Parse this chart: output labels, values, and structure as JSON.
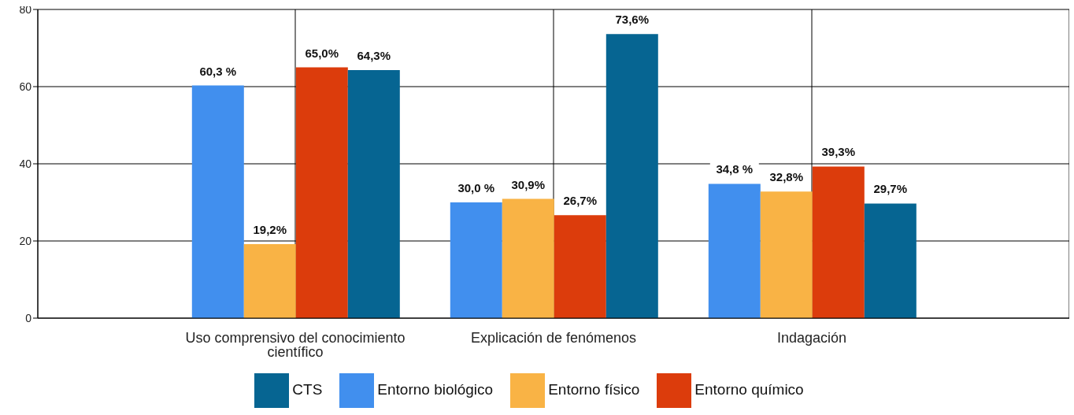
{
  "chart_data": {
    "type": "bar",
    "categories": [
      "Uso comprensivo del conocimiento científico",
      "Explicación de fenómenos",
      "Indagación"
    ],
    "series": [
      {
        "name": "Entorno biológico",
        "color": "#418fee",
        "values": [
          60.3,
          30.0,
          34.8
        ],
        "value_labels": [
          "60,3 %",
          "30,0 %",
          "34,8 %"
        ]
      },
      {
        "name": "Entorno físico",
        "color": "#f9b345",
        "values": [
          19.2,
          30.9,
          32.8
        ],
        "value_labels": [
          "19,2%",
          "30,9%",
          "32,8%"
        ]
      },
      {
        "name": "Entorno químico",
        "color": "#dc3c0c",
        "values": [
          65.0,
          26.7,
          39.3
        ],
        "value_labels": [
          "65,0%",
          "26,7%",
          "39,3%"
        ]
      },
      {
        "name": "CTS",
        "color": "#066592",
        "values": [
          64.3,
          73.6,
          29.7
        ],
        "value_labels": [
          "64,3%",
          "73,6%",
          "29,7%"
        ]
      }
    ],
    "ylim": [
      0,
      80
    ],
    "yticks": [
      0,
      20,
      40,
      60,
      80
    ],
    "grid": true,
    "legend": "bottom"
  }
}
